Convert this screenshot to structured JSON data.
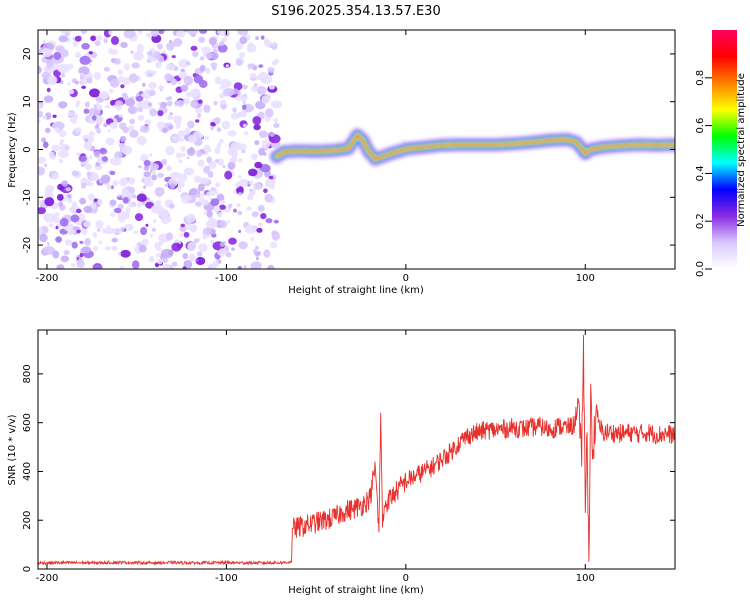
{
  "chart_data": [
    {
      "type": "heatmap",
      "title": "S196.2025.354.13.57.E30",
      "xlabel": "Height of straight line (km)",
      "ylabel": "Frequency (Hz)",
      "xlim": [
        -205,
        150
      ],
      "ylim": [
        -25,
        25
      ],
      "xticks": [
        -200,
        -100,
        0,
        100
      ],
      "yticks": [
        -20,
        -10,
        0,
        10,
        20
      ],
      "noise_region_x": [
        -205,
        -72
      ],
      "ridge": {
        "x": [
          -72,
          -68,
          -60,
          -50,
          -40,
          -32,
          -27,
          -24,
          -21,
          -17,
          -13,
          -8,
          -3,
          0,
          10,
          20,
          30,
          40,
          50,
          60,
          70,
          80,
          90,
          95,
          98,
          100,
          103,
          110,
          120,
          130,
          140,
          150
        ],
        "y": [
          -1.5,
          -0.5,
          -0.3,
          -0.4,
          -0.2,
          0.2,
          3.0,
          2.0,
          -0.3,
          -2.0,
          -1.5,
          -0.8,
          -0.3,
          0.1,
          0.5,
          0.9,
          1.0,
          1.0,
          1.0,
          1.2,
          1.5,
          1.9,
          2.1,
          1.5,
          0.2,
          -0.8,
          0.0,
          0.5,
          0.8,
          1.0,
          0.9,
          1.0
        ]
      },
      "colorbar": {
        "label": "Normalized spectral amplitude",
        "range": [
          0,
          1
        ],
        "ticks": [
          0.0,
          0.2,
          0.4,
          0.6,
          0.8
        ],
        "tick_labels": [
          "0.0",
          "0.2",
          "0.4",
          "0.6",
          "0.8"
        ],
        "colors": [
          "#ffffff",
          "#d8c8ff",
          "#8a2be2",
          "#0000ff",
          "#00ffff",
          "#00ff00",
          "#ffff00",
          "#ff8000",
          "#ff0000",
          "#ff0060"
        ]
      }
    },
    {
      "type": "line",
      "xlabel": "Height of straight line (km)",
      "ylabel": "SNR (10 * v/v)",
      "xlim": [
        -205,
        150
      ],
      "ylim": [
        0,
        980
      ],
      "xticks": [
        -200,
        -100,
        0,
        100
      ],
      "yticks": [
        0,
        200,
        400,
        600,
        800
      ],
      "series": [
        {
          "name": "SNR",
          "color": "#e8302c",
          "x": [
            -205,
            -190,
            -175,
            -160,
            -145,
            -130,
            -115,
            -100,
            -85,
            -70,
            -64,
            -63,
            -60,
            -55,
            -50,
            -45,
            -40,
            -35,
            -30,
            -25,
            -20,
            -17,
            -15,
            -14,
            -13,
            -12,
            -10,
            -5,
            0,
            5,
            10,
            15,
            20,
            25,
            30,
            35,
            40,
            45,
            50,
            55,
            60,
            65,
            70,
            75,
            80,
            85,
            90,
            94,
            96,
            98,
            99,
            100,
            101,
            102,
            103,
            104,
            106,
            108,
            110,
            115,
            120,
            125,
            130,
            135,
            140,
            145,
            150
          ],
          "y": [
            25,
            26,
            25,
            27,
            25,
            26,
            25,
            26,
            25,
            26,
            28,
            165,
            170,
            180,
            190,
            200,
            210,
            235,
            245,
            260,
            290,
            420,
            150,
            640,
            170,
            260,
            280,
            320,
            360,
            380,
            400,
            420,
            450,
            480,
            520,
            550,
            560,
            570,
            570,
            575,
            580,
            575,
            580,
            585,
            570,
            585,
            580,
            590,
            700,
            420,
            960,
            230,
            560,
            30,
            760,
            450,
            650,
            580,
            560,
            560,
            555,
            560,
            555,
            560,
            550,
            555,
            550
          ]
        }
      ]
    }
  ]
}
